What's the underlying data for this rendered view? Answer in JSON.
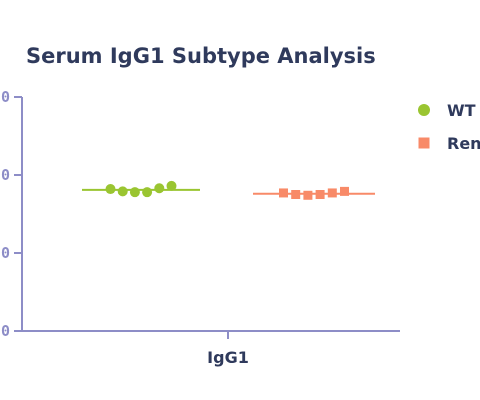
{
  "chart_data": {
    "type": "scatter",
    "title": "Serum IgG1 Subtype Analysis",
    "xlabel": "",
    "ylabel": "",
    "categories": [
      "IgG1"
    ],
    "y_tick_labels": [
      "0",
      "0",
      "0",
      "0"
    ],
    "ylim": [
      0,
      3
    ],
    "grid": false,
    "legend_position": "right",
    "series": [
      {
        "name": "WT",
        "marker": "circle",
        "color": "#9ac531",
        "values": [
          1.82,
          1.79,
          1.78,
          1.78,
          1.83,
          1.86
        ],
        "mean": 1.81
      },
      {
        "name": "Ren",
        "marker": "square",
        "color": "#f88a68",
        "values": [
          1.77,
          1.75,
          1.74,
          1.75,
          1.77,
          1.79
        ],
        "mean": 1.76
      }
    ],
    "colors": {
      "title": "#2f3a5c",
      "axis": "#8d8dc7"
    }
  }
}
